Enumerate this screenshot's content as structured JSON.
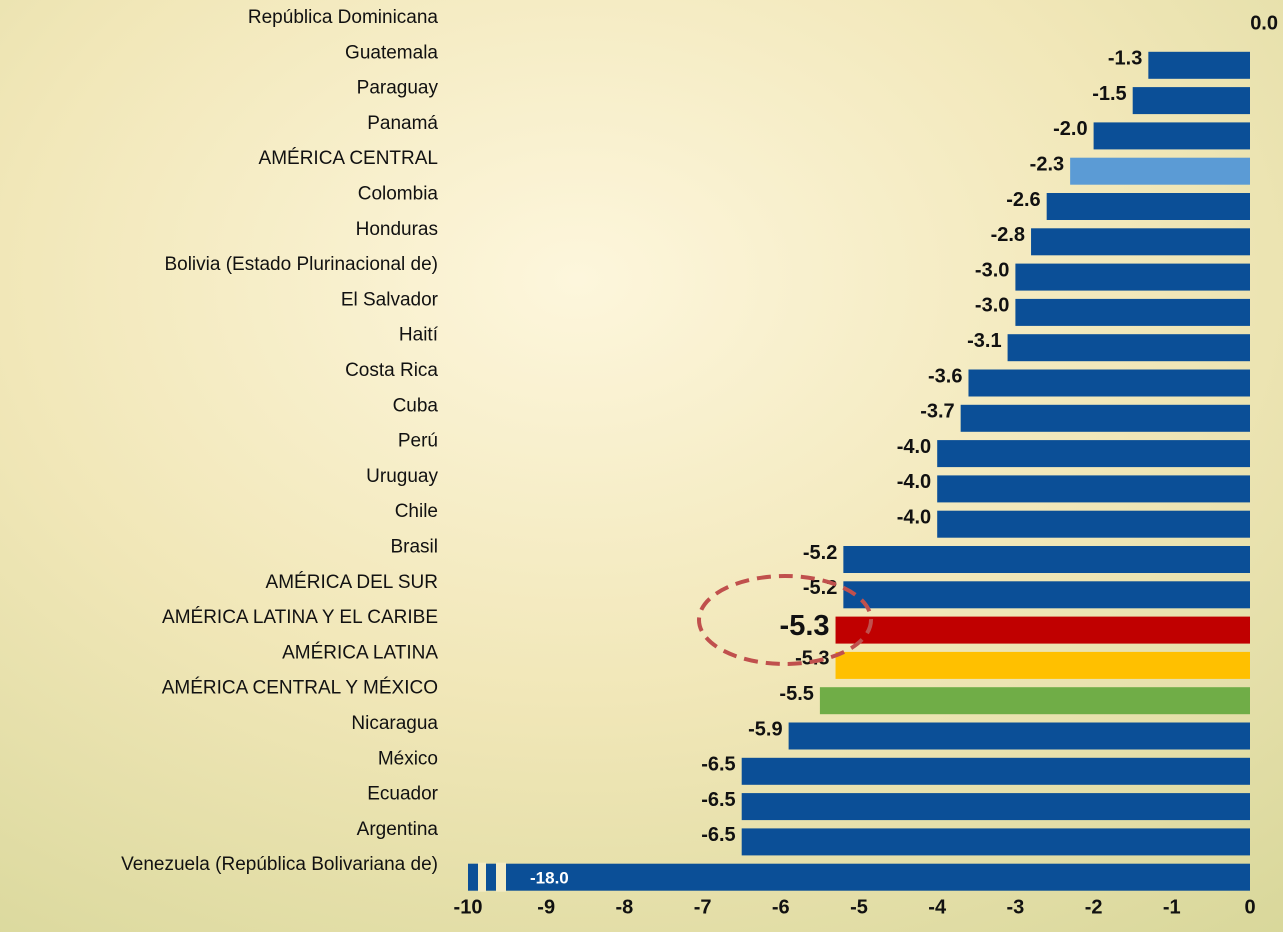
{
  "chart_data": {
    "type": "bar",
    "orientation": "horizontal",
    "categories": [
      "República Dominicana",
      "Guatemala",
      "Paraguay",
      "Panamá",
      "AMÉRICA CENTRAL",
      "Colombia",
      "Honduras",
      "Bolivia (Estado Plurinacional de)",
      "El Salvador",
      "Haití",
      "Costa Rica",
      "Cuba",
      "Perú",
      "Uruguay",
      "Chile",
      "Brasil",
      "AMÉRICA DEL SUR",
      "AMÉRICA LATINA Y EL CARIBE",
      "AMÉRICA LATINA",
      "AMÉRICA CENTRAL Y MÉXICO",
      "Nicaragua",
      "México",
      "Ecuador",
      "Argentina",
      "Venezuela (República Bolivariana de)"
    ],
    "values": [
      0.0,
      -1.3,
      -1.5,
      -2.0,
      -2.3,
      -2.6,
      -2.8,
      -3.0,
      -3.0,
      -3.1,
      -3.6,
      -3.7,
      -4.0,
      -4.0,
      -4.0,
      -5.2,
      -5.2,
      -5.3,
      -5.3,
      -5.5,
      -5.9,
      -6.5,
      -6.5,
      -6.5,
      -18.0
    ],
    "value_labels": [
      "0.0",
      "-1.3",
      "-1.5",
      "-2.0",
      "-2.3",
      "-2.6",
      "-2.8",
      "-3.0",
      "-3.0",
      "-3.1",
      "-3.6",
      "-3.7",
      "-4.0",
      "-4.0",
      "-4.0",
      "-5.2",
      "-5.2",
      "-5.3",
      "-5.3",
      "-5.5",
      "-5.9",
      "-6.5",
      "-6.5",
      "-6.5",
      "-18.0"
    ],
    "colors": [
      "#0b4f97",
      "#0b4f97",
      "#0b4f97",
      "#0b4f97",
      "#5b9bd5",
      "#0b4f97",
      "#0b4f97",
      "#0b4f97",
      "#0b4f97",
      "#0b4f97",
      "#0b4f97",
      "#0b4f97",
      "#0b4f97",
      "#0b4f97",
      "#0b4f97",
      "#0b4f97",
      "#0b4f97",
      "#c00000",
      "#ffc000",
      "#70ad47",
      "#0b4f97",
      "#0b4f97",
      "#0b4f97",
      "#0b4f97",
      "#0b4f97"
    ],
    "xlim": [
      -10,
      0
    ],
    "xticks": [
      -10,
      -9,
      -8,
      -7,
      -6,
      -5,
      -4,
      -3,
      -2,
      -1,
      0
    ],
    "grid": false
  }
}
